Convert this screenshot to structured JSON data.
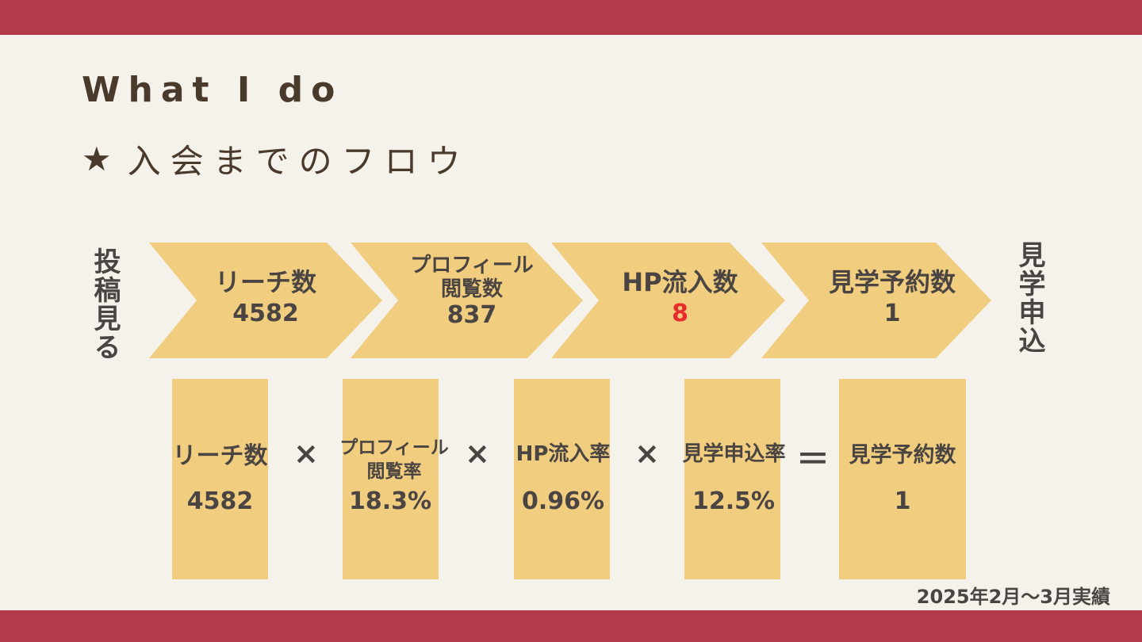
{
  "title": "What I do",
  "subtitle": {
    "star": "★",
    "text": "入会までのフロウ"
  },
  "side_left": "投稿見る",
  "side_right": "見学申込",
  "flow": [
    {
      "label": "リーチ数",
      "value": "4582"
    },
    {
      "label_line1": "プロフィール",
      "label_line2": "閲覧数",
      "value": "837"
    },
    {
      "label": "HP流入数",
      "value": "8"
    },
    {
      "label": "見学予約数",
      "value": "1"
    }
  ],
  "calc": {
    "items": [
      {
        "label": "リーチ数",
        "value": "4582"
      },
      {
        "label_line1": "プロフィール",
        "label_line2": "閲覧率",
        "value": "18.3%"
      },
      {
        "label": "HP流入率",
        "value": "0.96%"
      },
      {
        "label": "見学申込率",
        "value": "12.5%"
      },
      {
        "label": "見学予約数",
        "value": "1"
      }
    ],
    "multiply": "×",
    "equals": "＝"
  },
  "footnote": "2025年2月～3月実績",
  "colors": {
    "accent_bar": "#b23a4a",
    "chevron_fill": "#f1cd7f",
    "highlight_red": "#e82b2b",
    "background": "#f5f2ec"
  }
}
